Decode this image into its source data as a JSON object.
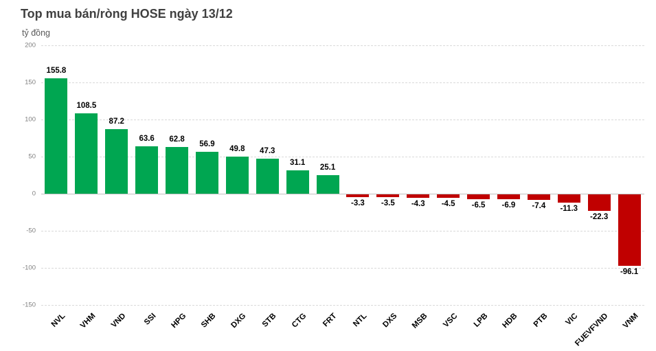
{
  "header": {
    "title": "Top mua bán/ròng HOSE ngày 13/12",
    "unit_label": "tỷ đồng"
  },
  "colors": {
    "positive_bar": "#00a651",
    "negative_bar": "#c00000",
    "title_text": "#404040",
    "axis_text": "#7f7f7f",
    "gridline": "#d9d9d9",
    "zero_line": "#c0c0c0",
    "data_label": "#000000"
  },
  "chart_data": {
    "type": "bar",
    "title": "Top mua bán/ròng HOSE ngày 13/12",
    "ylabel": "tỷ đồng",
    "xlabel": "",
    "categories": [
      "NVL",
      "VHM",
      "VND",
      "SSI",
      "HPG",
      "SHB",
      "DXG",
      "STB",
      "CTG",
      "FRT",
      "NTL",
      "DXS",
      "MSB",
      "VSC",
      "LPB",
      "HDB",
      "PTB",
      "VIC",
      "FUEVFVND",
      "VNM"
    ],
    "values": [
      155.8,
      108.5,
      87.2,
      63.6,
      62.8,
      56.9,
      49.8,
      47.3,
      31.1,
      25.1,
      -3.3,
      -3.5,
      -4.3,
      -4.5,
      -6.5,
      -6.9,
      -7.4,
      -11.3,
      -22.3,
      -96.1
    ],
    "ylim": [
      -150,
      200
    ],
    "yticks": [
      200,
      150,
      100,
      50,
      0,
      -50,
      -100,
      -150
    ],
    "grid": true,
    "legend": false,
    "bar_color_rule": "green if positive, dark red if negative",
    "value_labels": "one decimal, above positive bars, below negative bars"
  }
}
